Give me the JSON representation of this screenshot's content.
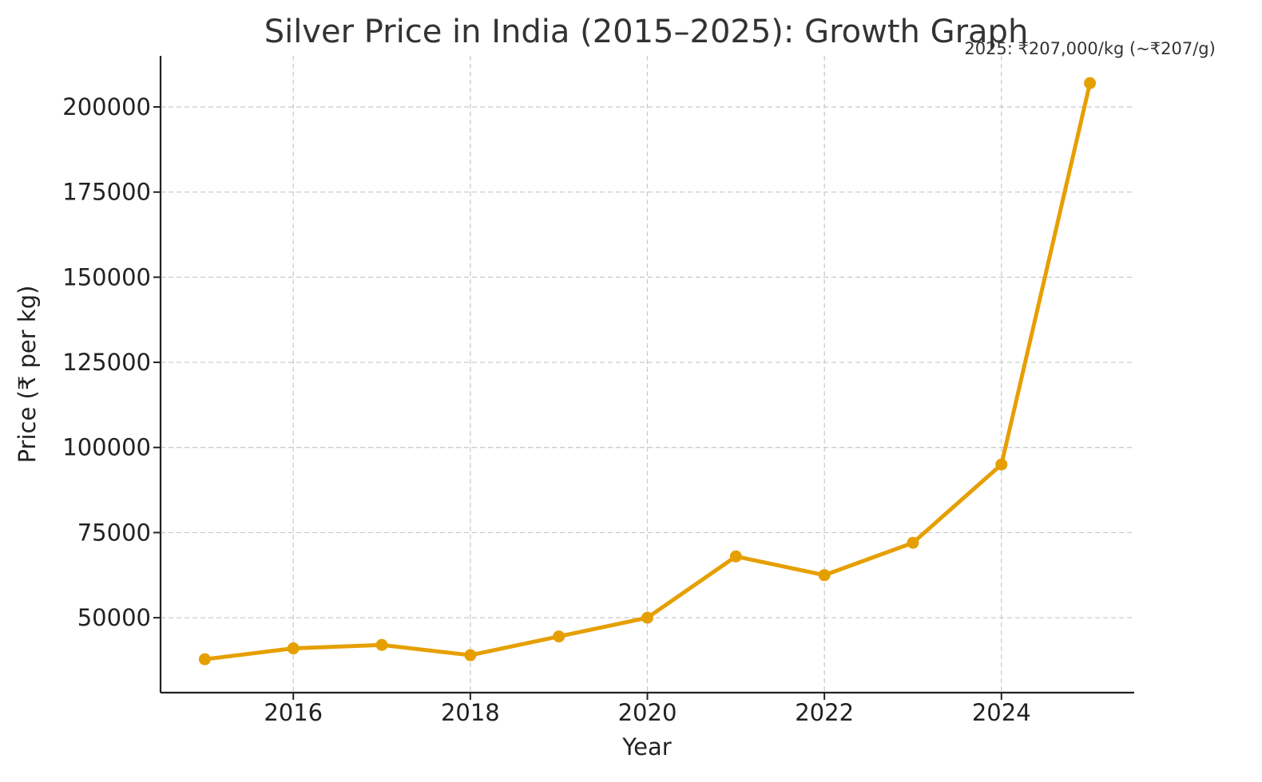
{
  "chart_data": {
    "type": "line",
    "title": "Silver Price in India (2015–2025): Growth Graph",
    "xlabel": "Year",
    "ylabel": "Price (₹ per kg)",
    "x": [
      2015,
      2016,
      2017,
      2018,
      2019,
      2020,
      2021,
      2022,
      2023,
      2024,
      2025
    ],
    "series": [
      {
        "values": [
          37800,
          41000,
          42000,
          39000,
          44500,
          50000,
          68000,
          62500,
          72000,
          95000,
          207000
        ],
        "color": "#e69f00"
      }
    ],
    "xlim": [
      2014.5,
      2025.5
    ],
    "ylim": [
      28000,
      215000
    ],
    "xticks": [
      2016,
      2018,
      2020,
      2022,
      2024
    ],
    "yticks": [
      50000,
      75000,
      100000,
      125000,
      150000,
      175000,
      200000
    ],
    "xtick_labels": [
      "2016",
      "2018",
      "2020",
      "2022",
      "2024"
    ],
    "ytick_labels": [
      "50000",
      "75000",
      "100000",
      "125000",
      "150000",
      "175000",
      "200000"
    ],
    "grid": true,
    "annotations": [
      {
        "text": "2025: ₹207,000/kg (~₹207/g)",
        "x": 2025,
        "y": 207000
      }
    ]
  }
}
